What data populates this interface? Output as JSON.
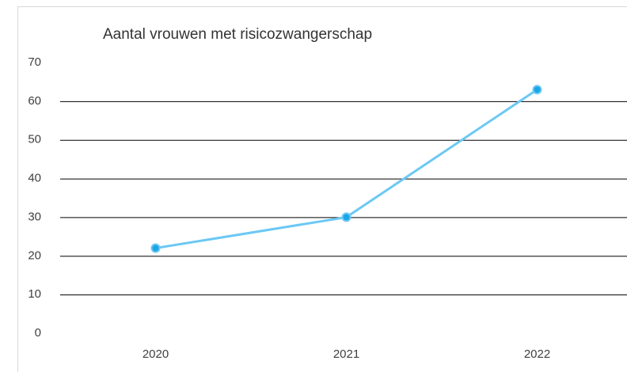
{
  "chart_data": {
    "type": "line",
    "title": "Aantal vrouwen met risicozwangerschap",
    "categories": [
      "2020",
      "2021",
      "2022"
    ],
    "series": [
      {
        "name": "Aantal vrouwen met risicozwangerschap",
        "color": "#6cc8f4",
        "values": [
          22,
          30,
          63
        ]
      }
    ],
    "ylim": [
      0,
      70
    ],
    "yticks": [
      0,
      10,
      20,
      30,
      40,
      50,
      60,
      70
    ],
    "grid": true
  }
}
